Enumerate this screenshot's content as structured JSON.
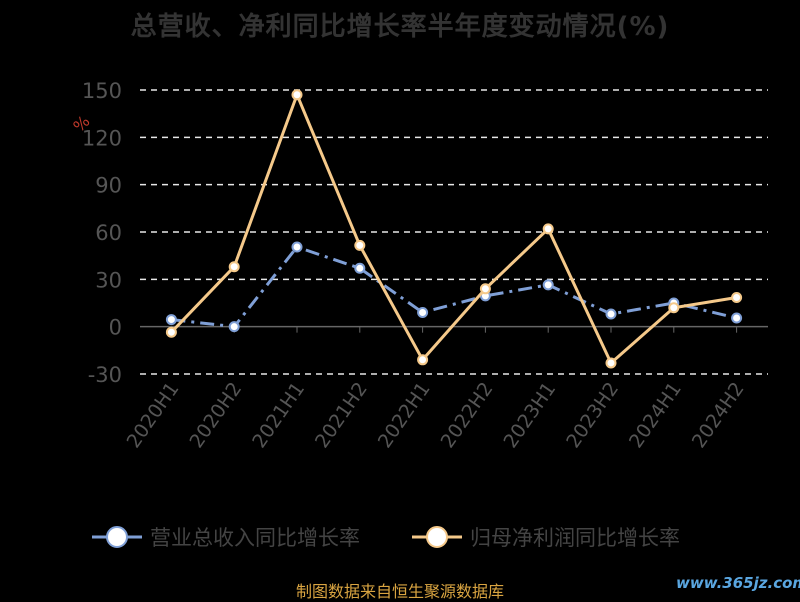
{
  "chart_data": {
    "type": "line",
    "title": "总营收、净利同比增长率半年度变动情况(%)",
    "unit_label": "%",
    "categories": [
      "2020H1",
      "2020H2",
      "2021H1",
      "2021H2",
      "2022H1",
      "2022H2",
      "2023H1",
      "2023H2",
      "2024H1",
      "2024H2"
    ],
    "yticks": [
      -30,
      0,
      30,
      60,
      90,
      120,
      150
    ],
    "ylim": [
      -30,
      150
    ],
    "grid": true,
    "legend_position": "bottom",
    "series": [
      {
        "name": "营业总收入同比增长率",
        "color": "#7f9fd6",
        "dashed": true,
        "values": [
          4.5,
          0.0,
          50.5,
          37.0,
          9.0,
          19.5,
          26.5,
          8.0,
          15.0,
          5.5
        ]
      },
      {
        "name": "归母净利润同比增长率",
        "color": "#f5c98a",
        "dashed": false,
        "values": [
          -3.5,
          38.0,
          147.0,
          51.5,
          -21.0,
          24.0,
          62.0,
          -23.0,
          12.0,
          18.5
        ]
      }
    ]
  },
  "footer": {
    "source": "制图数据来自恒生聚源数据库",
    "watermark": "www.365jz.com"
  }
}
